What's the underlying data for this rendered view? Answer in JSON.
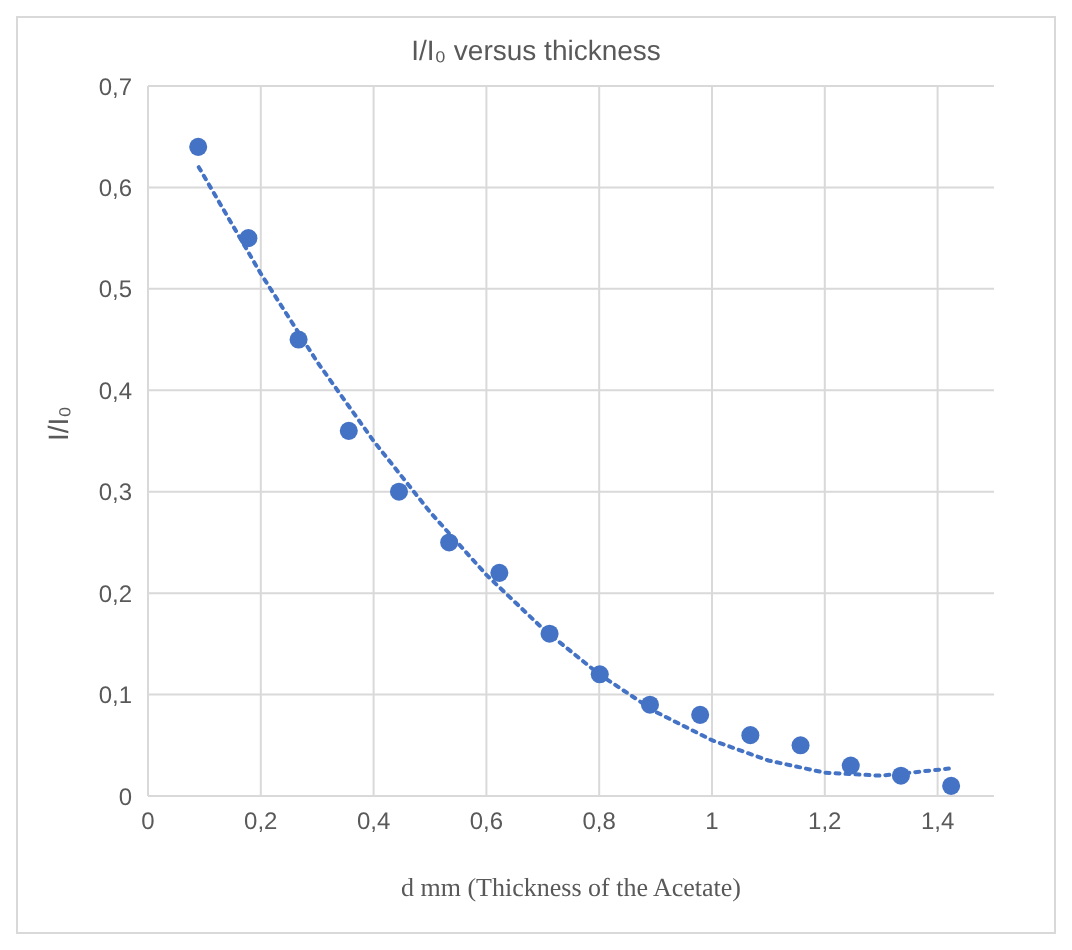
{
  "chart_data": {
    "type": "scatter",
    "title": "I/I₀ versus thickness",
    "xlabel": "d mm (Thickness of the Acetate)",
    "ylabel": "I/I₀",
    "x": [
      0.089,
      0.178,
      0.267,
      0.356,
      0.445,
      0.534,
      0.623,
      0.712,
      0.801,
      0.89,
      0.979,
      1.068,
      1.157,
      1.246,
      1.335,
      1.424
    ],
    "series": [
      {
        "type": "scatter",
        "color": "#4472c4",
        "marker": "circle",
        "values": [
          0.64,
          0.55,
          0.45,
          0.36,
          0.3,
          0.25,
          0.22,
          0.16,
          0.12,
          0.09,
          0.08,
          0.06,
          0.05,
          0.03,
          0.02,
          0.01
        ]
      },
      {
        "type": "line",
        "color": "#4472c4",
        "line_style": "dotted",
        "marker": "none",
        "x": [
          0.09,
          0.2,
          0.3,
          0.4,
          0.5,
          0.6,
          0.7,
          0.8,
          0.9,
          1.0,
          1.1,
          1.2,
          1.3,
          1.42
        ],
        "values": [
          0.62,
          0.515,
          0.428,
          0.35,
          0.28,
          0.218,
          0.165,
          0.12,
          0.083,
          0.055,
          0.035,
          0.023,
          0.02,
          0.027
        ]
      }
    ],
    "xlim": [
      0,
      1.5
    ],
    "ylim": [
      0,
      0.7
    ],
    "xticks": [
      0,
      {
        "value": 0.2,
        "label": "0,2"
      },
      {
        "value": 0.4,
        "label": "0,4"
      },
      {
        "value": 0.6,
        "label": "0,6"
      },
      {
        "value": 0.8,
        "label": "0,8"
      },
      1,
      {
        "value": 1.2,
        "label": "1,2"
      },
      {
        "value": 1.4,
        "label": "1,4"
      }
    ],
    "yticks": [
      0,
      {
        "value": 0.1,
        "label": "0,1"
      },
      {
        "value": 0.2,
        "label": "0,2"
      },
      {
        "value": 0.3,
        "label": "0,3"
      },
      {
        "value": 0.4,
        "label": "0,4"
      },
      {
        "value": 0.5,
        "label": "0,5"
      },
      {
        "value": 0.6,
        "label": "0,6"
      },
      {
        "value": 0.7,
        "label": "0,7"
      }
    ],
    "grid": true,
    "legend": false
  }
}
